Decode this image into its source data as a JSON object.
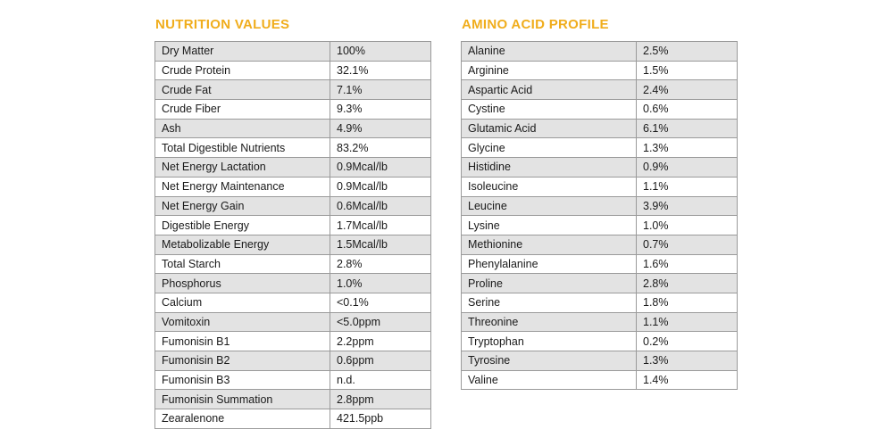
{
  "nutrition": {
    "title": "NUTRITION VALUES",
    "rows": [
      {
        "name": "Dry Matter",
        "value": "100%"
      },
      {
        "name": "Crude Protein",
        "value": "32.1%"
      },
      {
        "name": "Crude Fat",
        "value": "7.1%"
      },
      {
        "name": "Crude Fiber",
        "value": "9.3%"
      },
      {
        "name": "Ash",
        "value": "4.9%"
      },
      {
        "name": "Total Digestible Nutrients",
        "value": "83.2%"
      },
      {
        "name": "Net Energy Lactation",
        "value": "0.9Mcal/lb"
      },
      {
        "name": "Net Energy Maintenance",
        "value": "0.9Mcal/lb"
      },
      {
        "name": "Net Energy Gain",
        "value": "0.6Mcal/lb"
      },
      {
        "name": "Digestible Energy",
        "value": "1.7Mcal/lb"
      },
      {
        "name": "Metabolizable Energy",
        "value": "1.5Mcal/lb"
      },
      {
        "name": "Total Starch",
        "value": "2.8%"
      },
      {
        "name": "Phosphorus",
        "value": "1.0%"
      },
      {
        "name": "Calcium",
        "value": "<0.1%"
      },
      {
        "name": "Vomitoxin",
        "value": "<5.0ppm"
      },
      {
        "name": "Fumonisin B1",
        "value": "2.2ppm"
      },
      {
        "name": "Fumonisin B2",
        "value": "0.6ppm"
      },
      {
        "name": "Fumonisin B3",
        "value": "n.d."
      },
      {
        "name": "Fumonisin Summation",
        "value": "2.8ppm"
      },
      {
        "name": "Zearalenone",
        "value": "421.5ppb"
      }
    ]
  },
  "amino": {
    "title": "AMINO ACID PROFILE",
    "rows": [
      {
        "name": "Alanine",
        "value": "2.5%"
      },
      {
        "name": "Arginine",
        "value": "1.5%"
      },
      {
        "name": "Aspartic Acid",
        "value": "2.4%"
      },
      {
        "name": "Cystine",
        "value": "0.6%"
      },
      {
        "name": "Glutamic Acid",
        "value": "6.1%"
      },
      {
        "name": "Glycine",
        "value": "1.3%"
      },
      {
        "name": "Histidine",
        "value": "0.9%"
      },
      {
        "name": "Isoleucine",
        "value": "1.1%"
      },
      {
        "name": "Leucine",
        "value": "3.9%"
      },
      {
        "name": "Lysine",
        "value": "1.0%"
      },
      {
        "name": "Methionine",
        "value": "0.7%"
      },
      {
        "name": "Phenylalanine",
        "value": "1.6%"
      },
      {
        "name": "Proline",
        "value": "2.8%"
      },
      {
        "name": "Serine",
        "value": "1.8%"
      },
      {
        "name": "Threonine",
        "value": "1.1%"
      },
      {
        "name": "Tryptophan",
        "value": "0.2%"
      },
      {
        "name": "Tyrosine",
        "value": "1.3%"
      },
      {
        "name": "Valine",
        "value": "1.4%"
      }
    ]
  }
}
